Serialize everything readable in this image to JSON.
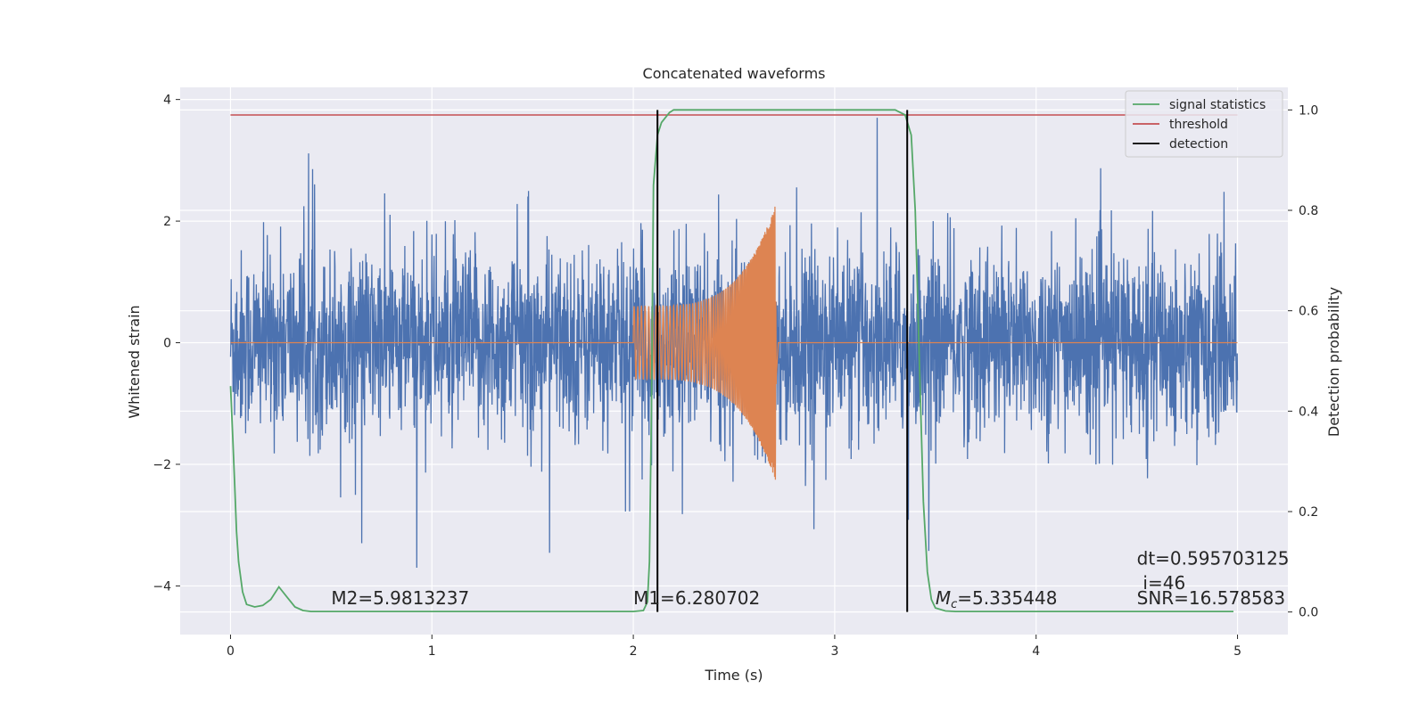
{
  "chart_data": {
    "type": "line",
    "title": "Concatenated waveforms",
    "xlabel": "Time (s)",
    "ylabel": "Whitened strain",
    "y2label": "Detection probability",
    "xlim": [
      -0.25,
      5.25
    ],
    "ylim": [
      -4.8,
      4.2
    ],
    "y2lim": [
      -0.045,
      1.045
    ],
    "xticks": [
      "0",
      "1",
      "2",
      "3",
      "4",
      "5"
    ],
    "yticks": [
      "4",
      "2",
      "0",
      "−2",
      "−4"
    ],
    "y2ticks": [
      "1.0",
      "0.8",
      "0.6",
      "0.4",
      "0.2",
      "0.0"
    ],
    "grid": true,
    "legend_position": "top-right",
    "colors": {
      "strain": "#4c72b0",
      "template": "#dd8452",
      "signal_statistics": "#55a868",
      "threshold": "#c44e52",
      "detection": "#000000",
      "background": "#eaeaf2"
    },
    "series": [
      {
        "name": "signal statistics",
        "axis": "right",
        "points": [
          [
            0.0,
            0.45
          ],
          [
            0.01,
            0.36
          ],
          [
            0.02,
            0.26
          ],
          [
            0.03,
            0.16
          ],
          [
            0.04,
            0.1
          ],
          [
            0.06,
            0.04
          ],
          [
            0.08,
            0.015
          ],
          [
            0.12,
            0.01
          ],
          [
            0.16,
            0.013
          ],
          [
            0.2,
            0.025
          ],
          [
            0.24,
            0.05
          ],
          [
            0.28,
            0.03
          ],
          [
            0.32,
            0.01
          ],
          [
            0.36,
            0.003
          ],
          [
            0.4,
            0.001
          ],
          [
            1.0,
            0.001
          ],
          [
            2.0,
            0.001
          ],
          [
            2.05,
            0.003
          ],
          [
            2.07,
            0.02
          ],
          [
            2.08,
            0.1
          ],
          [
            2.09,
            0.4
          ],
          [
            2.1,
            0.85
          ],
          [
            2.12,
            0.95
          ],
          [
            2.14,
            0.975
          ],
          [
            2.18,
            0.995
          ],
          [
            2.2,
            1.0
          ],
          [
            3.3,
            1.0
          ],
          [
            3.35,
            0.99
          ],
          [
            3.38,
            0.95
          ],
          [
            3.4,
            0.8
          ],
          [
            3.42,
            0.5
          ],
          [
            3.44,
            0.22
          ],
          [
            3.46,
            0.08
          ],
          [
            3.48,
            0.025
          ],
          [
            3.5,
            0.008
          ],
          [
            3.55,
            0.002
          ],
          [
            3.6,
            0.001
          ],
          [
            4.98,
            0.001
          ]
        ]
      },
      {
        "name": "threshold",
        "axis": "right",
        "value": 0.99,
        "x": [
          0,
          5
        ]
      },
      {
        "name": "detection",
        "axis": "right",
        "x": [
          2.12,
          3.36
        ],
        "y": [
          0.0,
          1.0
        ]
      },
      {
        "name": "",
        "axis": "left",
        "description_values": "noise amplitude envelope",
        "x": [
          0,
          5
        ],
        "typical_amplitude": 1.2,
        "peak_amplitude": 3.7
      },
      {
        "name": "",
        "axis": "left",
        "x": [
          2.0,
          2.71
        ],
        "start_amplitude": 0.6,
        "end_amplitude": 2.3
      }
    ],
    "annotations": [
      {
        "text": "M2=5.9813237",
        "x": 0.5,
        "y": -4.3
      },
      {
        "text": "M1=6.280702",
        "x": 2.0,
        "y": -4.3
      },
      {
        "text": "Mc",
        "text_sub": "c",
        "value": "=5.335448",
        "x": 3.5,
        "y": -4.3
      },
      {
        "text": "dt=0.595703125",
        "x": 4.5,
        "y": -3.65
      },
      {
        "text": "i=46",
        "x": 4.53,
        "y": -4.05
      },
      {
        "text": "SNR=16.578583",
        "x": 4.5,
        "y": -4.3
      }
    ]
  }
}
